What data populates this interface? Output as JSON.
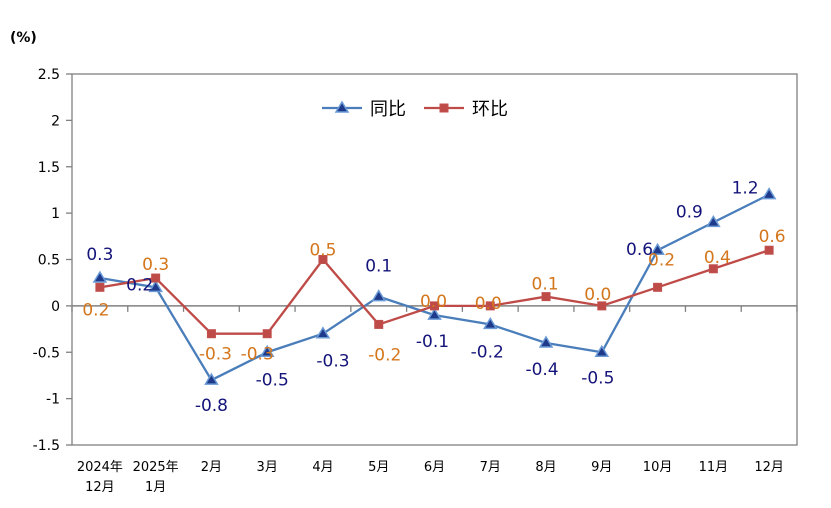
{
  "chart_data": {
    "type": "line",
    "unit_label": "(%)",
    "categories": [
      [
        "2024年",
        "12月"
      ],
      [
        "2025年",
        "1月"
      ],
      [
        "2月"
      ],
      [
        "3月"
      ],
      [
        "4月"
      ],
      [
        "5月"
      ],
      [
        "6月"
      ],
      [
        "7月"
      ],
      [
        "8月"
      ],
      [
        "9月"
      ],
      [
        "10月"
      ],
      [
        "11月"
      ],
      [
        "12月"
      ]
    ],
    "series": [
      {
        "name": "同比",
        "color": "#4a7ebb",
        "marker": "triangle",
        "label_color": "#14147a",
        "values": [
          0.3,
          0.2,
          -0.8,
          -0.5,
          -0.3,
          0.1,
          -0.1,
          -0.2,
          -0.4,
          -0.5,
          0.6,
          0.9,
          1.2
        ]
      },
      {
        "name": "环比",
        "color": "#be4b48",
        "marker": "square",
        "label_color": "#d4761c",
        "values": [
          0.2,
          0.3,
          -0.3,
          -0.3,
          0.5,
          -0.2,
          0.0,
          0.0,
          0.1,
          0.0,
          0.2,
          0.4,
          0.6
        ]
      }
    ],
    "ylim": [
      -1.5,
      2.5
    ],
    "yticks": [
      "2.5",
      "2",
      "1.5",
      "1",
      "0.5",
      "0",
      "-0.5",
      "-1",
      "-1.5"
    ],
    "ytick_values": [
      2.5,
      2,
      1.5,
      1,
      0.5,
      0,
      -0.5,
      -1,
      -1.5
    ],
    "legend": "top-center",
    "grid": false
  }
}
